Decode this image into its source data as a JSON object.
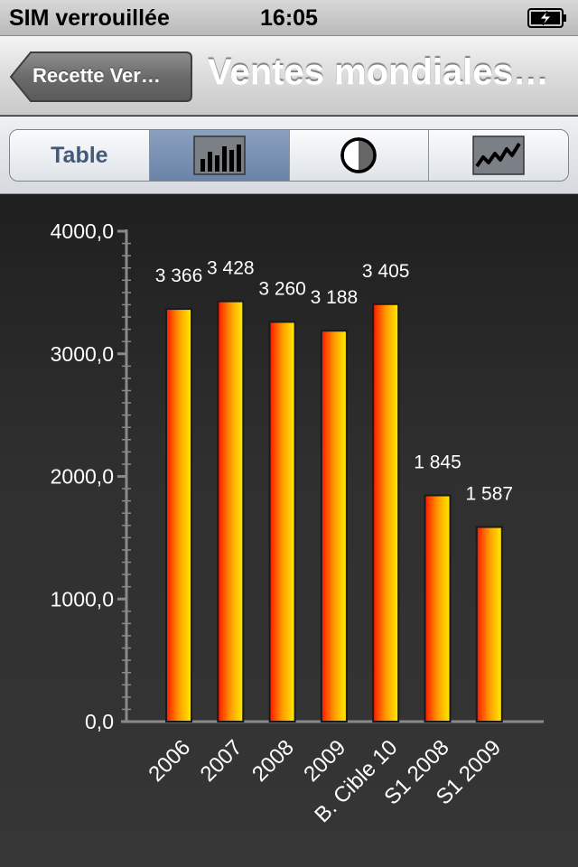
{
  "status_bar": {
    "carrier": "SIM verrouillée",
    "time": "16:05",
    "battery_icon": "battery-charging-icon"
  },
  "nav": {
    "back_label": "Recette Ver…",
    "title": "Ventes mondiales…"
  },
  "segments": [
    {
      "label": "Table",
      "icon": "",
      "active": false
    },
    {
      "label": "",
      "icon": "bar-chart-icon",
      "active": true
    },
    {
      "label": "",
      "icon": "pie-chart-icon",
      "active": false
    },
    {
      "label": "",
      "icon": "line-chart-icon",
      "active": false
    }
  ],
  "colors": {
    "bar_left": "#ff1400",
    "bar_mid": "#ff9a00",
    "bar_right": "#ffee00",
    "axis": "#8a8a8a"
  },
  "chart_data": {
    "type": "bar",
    "categories": [
      "2006",
      "2007",
      "2008",
      "2009",
      "B. Cible 10",
      "S1 2008",
      "S1 2009"
    ],
    "values": [
      3366,
      3428,
      3260,
      3188,
      3405,
      1845,
      1587
    ],
    "value_labels": [
      "3 366",
      "3 428",
      "3 260",
      "3 188",
      "3 405",
      "1 845",
      "1 587"
    ],
    "yticks": [
      "0,0",
      "1000,0",
      "2000,0",
      "3000,0",
      "4000,0"
    ],
    "ylim": [
      0,
      4000
    ],
    "grid": false
  }
}
